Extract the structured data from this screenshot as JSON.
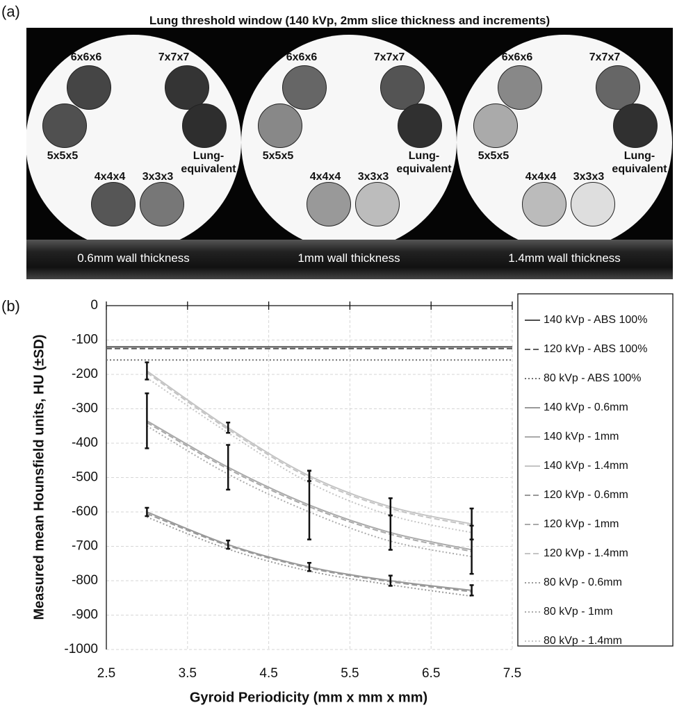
{
  "image_panel": {
    "panel_label": "(a)",
    "title": "Lung threshold window (140 kVp, 2mm slice thickness and increments)",
    "phantoms": [
      {
        "caption": "0.6mm wall thickness",
        "inserts": [
          "6x6x6",
          "7x7x7",
          "5x5x5",
          "Lung-equivalent",
          "4x4x4",
          "3x3x3"
        ]
      },
      {
        "caption": "1mm wall thickness",
        "inserts": [
          "6x6x6",
          "7x7x7",
          "5x5x5",
          "Lung-equivalent",
          "4x4x4",
          "3x3x3"
        ]
      },
      {
        "caption": "1.4mm wall thickness",
        "inserts": [
          "6x6x6",
          "7x7x7",
          "5x5x5",
          "Lung-equivalent",
          "4x4x4",
          "3x3x3"
        ]
      }
    ]
  },
  "chart_data": {
    "type": "line",
    "panel_label": "(b)",
    "x_label": "Gyroid Periodicity (mm x mm x mm)",
    "y_label": "Measured mean Hounsfield units, HU (±SD)",
    "xlim": [
      2.5,
      7.5
    ],
    "xticks": [
      2.5,
      3.5,
      4.5,
      5.5,
      6.5,
      7.5
    ],
    "ylim": [
      -1000,
      0
    ],
    "yticks": [
      0,
      -100,
      -200,
      -300,
      -400,
      -500,
      -600,
      -700,
      -800,
      -900,
      -1000
    ],
    "grid": true,
    "legend": "right",
    "series": [
      {
        "name": "140 kVp - ABS 100%",
        "color": "#4d4d4d",
        "dash": "solid",
        "x": [
          2.5,
          7.5
        ],
        "values": [
          -120,
          -120
        ]
      },
      {
        "name": "120 kVp - ABS 100%",
        "color": "#5e5e5e",
        "dash": "dashed",
        "x": [
          2.5,
          7.5
        ],
        "values": [
          -125,
          -125
        ]
      },
      {
        "name": "80 kVp - ABS 100%",
        "color": "#707070",
        "dash": "dotted",
        "x": [
          2.5,
          7.5
        ],
        "values": [
          -158,
          -158
        ]
      },
      {
        "name": "140 kVp - 0.6mm",
        "color": "#999999",
        "dash": "solid",
        "x": [
          3,
          4,
          5,
          6,
          7
        ],
        "values": [
          -600,
          -695,
          -760,
          -800,
          -828
        ],
        "errors": [
          12,
          12,
          12,
          15,
          15
        ]
      },
      {
        "name": "140 kVp - 1mm",
        "color": "#aaaaaa",
        "dash": "solid",
        "x": [
          3,
          4,
          5,
          6,
          7
        ],
        "values": [
          -335,
          -470,
          -580,
          -660,
          -710
        ],
        "errors": [
          80,
          65,
          100,
          50,
          70
        ]
      },
      {
        "name": "140 kVp - 1.4mm",
        "color": "#c4c4c4",
        "dash": "solid",
        "x": [
          3,
          4,
          5,
          6,
          7
        ],
        "values": [
          -190,
          -355,
          -495,
          -585,
          -635
        ],
        "errors": [
          25,
          15,
          15,
          25,
          45
        ]
      },
      {
        "name": "120 kVp - 0.6mm",
        "color": "#999999",
        "dash": "dashed",
        "x": [
          3,
          4,
          5,
          6,
          7
        ],
        "values": [
          -605,
          -698,
          -763,
          -803,
          -832
        ]
      },
      {
        "name": "120 kVp - 1mm",
        "color": "#aaaaaa",
        "dash": "dashed",
        "x": [
          3,
          4,
          5,
          6,
          7
        ],
        "values": [
          -340,
          -475,
          -585,
          -665,
          -715
        ]
      },
      {
        "name": "120 kVp - 1.4mm",
        "color": "#c4c4c4",
        "dash": "dashed",
        "x": [
          3,
          4,
          5,
          6,
          7
        ],
        "values": [
          -195,
          -360,
          -500,
          -590,
          -640
        ]
      },
      {
        "name": "80 kVp - 0.6mm",
        "color": "#999999",
        "dash": "dotted",
        "x": [
          3,
          4,
          5,
          6,
          7
        ],
        "values": [
          -615,
          -708,
          -772,
          -812,
          -845
        ]
      },
      {
        "name": "80 kVp - 1mm",
        "color": "#aaaaaa",
        "dash": "dotted",
        "x": [
          3,
          4,
          5,
          6,
          7
        ],
        "values": [
          -350,
          -490,
          -600,
          -685,
          -730
        ]
      },
      {
        "name": "80 kVp - 1.4mm",
        "color": "#c4c4c4",
        "dash": "dotted",
        "x": [
          3,
          4,
          5,
          6,
          7
        ],
        "values": [
          -210,
          -370,
          -515,
          -610,
          -660
        ]
      }
    ]
  }
}
